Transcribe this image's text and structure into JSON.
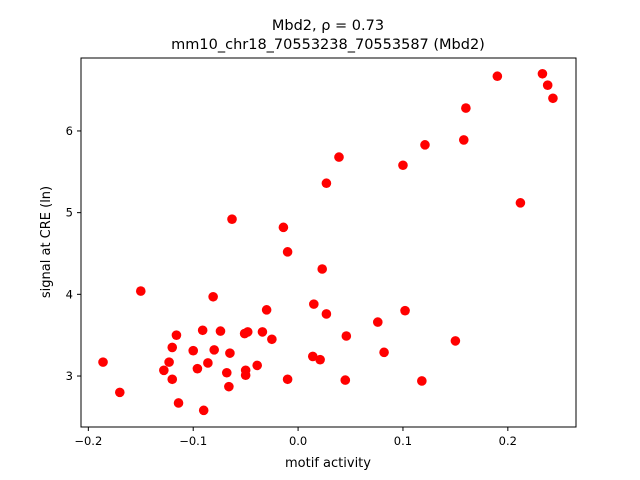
{
  "chart_data": {
    "type": "scatter",
    "title_line1": "Mbd2, ρ = 0.73",
    "title_line2": "mm10_chr18_70553238_70553587 (Mbd2)",
    "xlabel": "motif activity",
    "ylabel": "signal at CRE (ln)",
    "xlim": [
      -0.207,
      0.265
    ],
    "ylim": [
      2.376,
      6.893
    ],
    "xticks": [
      -0.2,
      -0.1,
      0.0,
      0.1,
      0.2
    ],
    "xtick_labels": [
      "−0.2",
      "−0.1",
      "0.0",
      "0.1",
      "0.2"
    ],
    "yticks": [
      3,
      4,
      5,
      6
    ],
    "ytick_labels": [
      "3",
      "4",
      "5",
      "6"
    ],
    "grid": false,
    "marker_color": "#ff0000",
    "points": [
      [
        -0.186,
        3.17
      ],
      [
        -0.17,
        2.8
      ],
      [
        -0.15,
        4.04
      ],
      [
        -0.128,
        3.07
      ],
      [
        -0.123,
        3.17
      ],
      [
        -0.12,
        3.35
      ],
      [
        -0.12,
        2.96
      ],
      [
        -0.116,
        3.5
      ],
      [
        -0.114,
        2.67
      ],
      [
        -0.1,
        3.31
      ],
      [
        -0.096,
        3.09
      ],
      [
        -0.091,
        3.56
      ],
      [
        -0.09,
        2.58
      ],
      [
        -0.086,
        3.16
      ],
      [
        -0.081,
        3.97
      ],
      [
        -0.08,
        3.32
      ],
      [
        -0.074,
        3.55
      ],
      [
        -0.068,
        3.04
      ],
      [
        -0.066,
        2.87
      ],
      [
        -0.065,
        3.28
      ],
      [
        -0.063,
        4.92
      ],
      [
        -0.051,
        3.52
      ],
      [
        -0.05,
        3.07
      ],
      [
        -0.05,
        3.01
      ],
      [
        -0.048,
        3.54
      ],
      [
        -0.039,
        3.13
      ],
      [
        -0.034,
        3.54
      ],
      [
        -0.03,
        3.81
      ],
      [
        -0.025,
        3.45
      ],
      [
        -0.014,
        4.82
      ],
      [
        -0.01,
        2.96
      ],
      [
        -0.01,
        4.52
      ],
      [
        0.014,
        3.24
      ],
      [
        0.015,
        3.88
      ],
      [
        0.021,
        3.2
      ],
      [
        0.023,
        4.31
      ],
      [
        0.027,
        3.76
      ],
      [
        0.027,
        5.36
      ],
      [
        0.039,
        5.68
      ],
      [
        0.045,
        2.95
      ],
      [
        0.046,
        3.49
      ],
      [
        0.076,
        3.66
      ],
      [
        0.082,
        3.29
      ],
      [
        0.1,
        5.58
      ],
      [
        0.102,
        3.8
      ],
      [
        0.118,
        2.94
      ],
      [
        0.121,
        5.83
      ],
      [
        0.15,
        3.43
      ],
      [
        0.158,
        5.89
      ],
      [
        0.16,
        6.28
      ],
      [
        0.19,
        6.67
      ],
      [
        0.212,
        5.12
      ],
      [
        0.233,
        6.7
      ],
      [
        0.238,
        6.56
      ],
      [
        0.243,
        6.4
      ]
    ]
  }
}
